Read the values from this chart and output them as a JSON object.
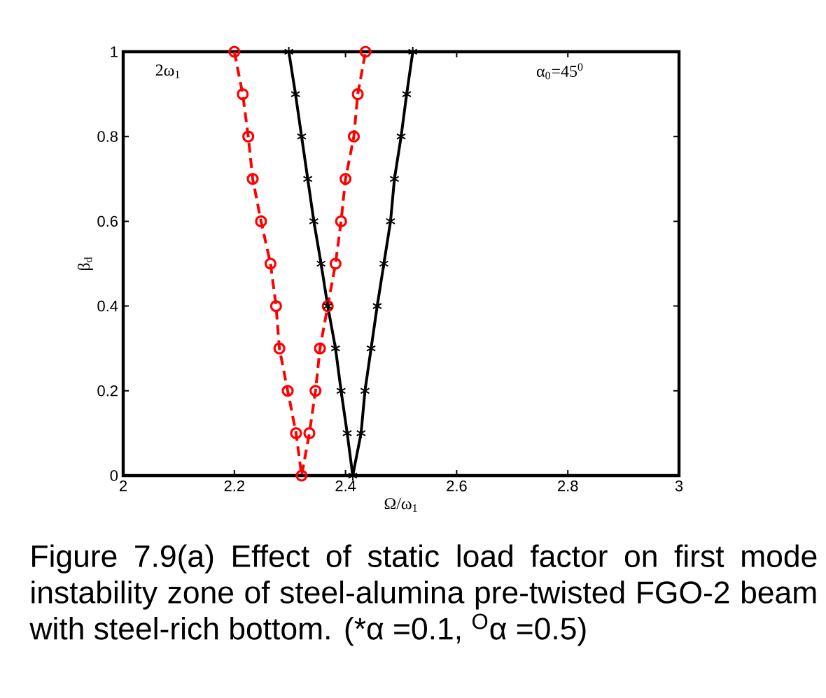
{
  "chart_data": {
    "type": "line",
    "xlabel": "Ω/ω$_{1}$",
    "ylabel": "β$_{d}$",
    "annotations": [
      "2ω$_{1}$",
      "α$_{0}$=45$^{0}$",
      "Figure 7.9(a) Effect of static load factor on first mode instability zone of steel-alumina pre-twisted FGO-2 beam with steel-rich bottom. (*α =0.1, $^{O}$α =0.5)"
    ],
    "xlim": [
      2,
      3
    ],
    "ylim": [
      0,
      1
    ],
    "xticks": [
      2,
      2.2,
      2.4,
      2.6,
      2.8,
      3
    ],
    "yticks": [
      0,
      0.2,
      0.4,
      0.6,
      0.8,
      1
    ],
    "grid": false,
    "series": [
      {
        "color": "#ff0000",
        "marker": "circle",
        "line_style": "dashed",
        "x": [
          2.2,
          2.215,
          2.225,
          2.233,
          2.248,
          2.265,
          2.275,
          2.281,
          2.296,
          2.311,
          2.321,
          2.335,
          2.346,
          2.354,
          2.368,
          2.382,
          2.392,
          2.4,
          2.415,
          2.422,
          2.436
        ],
        "values": [
          1,
          0.9,
          0.8,
          0.7,
          0.6,
          0.5,
          0.4,
          0.3,
          0.2,
          0.1,
          0,
          0.1,
          0.2,
          0.3,
          0.4,
          0.5,
          0.6,
          0.7,
          0.8,
          0.9,
          1
        ]
      },
      {
        "color": "#000000",
        "marker": "cross",
        "line_style": "solid",
        "x": [
          2.298,
          2.31,
          2.321,
          2.332,
          2.343,
          2.356,
          2.368,
          2.382,
          2.392,
          2.403,
          2.413,
          2.428,
          2.435,
          2.446,
          2.457,
          2.469,
          2.481,
          2.488,
          2.5,
          2.51,
          2.521
        ],
        "values": [
          1,
          0.9,
          0.8,
          0.7,
          0.6,
          0.5,
          0.4,
          0.3,
          0.2,
          0.1,
          0,
          0.1,
          0.2,
          0.3,
          0.4,
          0.5,
          0.6,
          0.7,
          0.8,
          0.9,
          1
        ]
      }
    ]
  }
}
